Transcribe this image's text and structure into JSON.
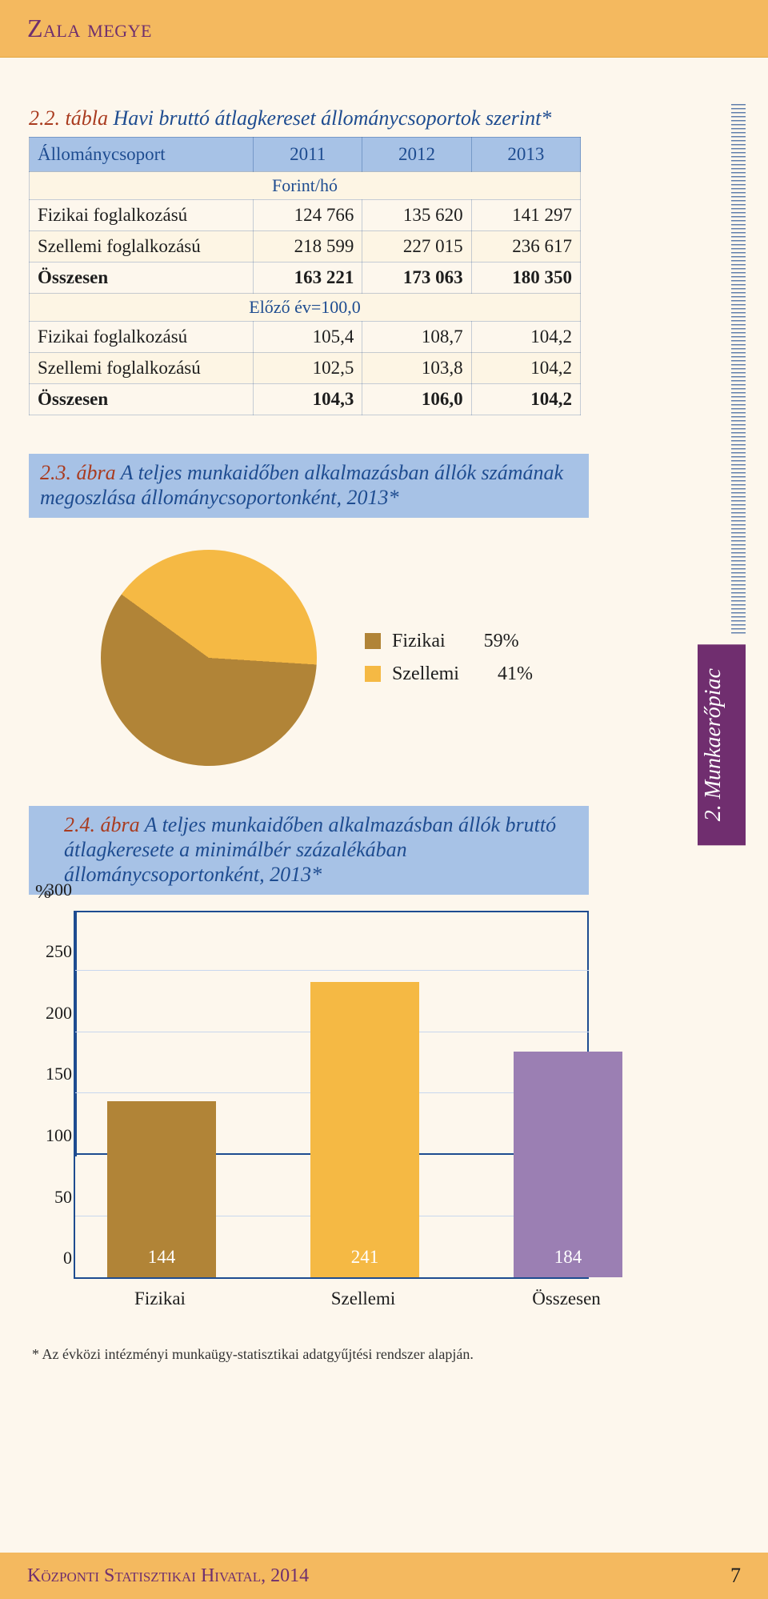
{
  "header": {
    "title": "Zala megye"
  },
  "sidebar": {
    "tab_label": "2. Munkaerőpiac"
  },
  "table": {
    "caption_num": "2.2. tábla",
    "caption_text": "Havi bruttó átlagkereset állománycsoportok szerint*",
    "columns": [
      "Állománycsoport",
      "2011",
      "2012",
      "2013"
    ],
    "section1_label": "Forint/hó",
    "rows1": [
      {
        "label": "Fizikai foglalkozású",
        "c": [
          "124 766",
          "135 620",
          "141 297"
        ],
        "bold": false
      },
      {
        "label": "Szellemi foglalkozású",
        "c": [
          "218 599",
          "227 015",
          "236 617"
        ],
        "bold": false
      },
      {
        "label": "Összesen",
        "c": [
          "163 221",
          "173 063",
          "180 350"
        ],
        "bold": true
      }
    ],
    "section2_label": "Előző év=100,0",
    "rows2": [
      {
        "label": "Fizikai foglalkozású",
        "c": [
          "105,4",
          "108,7",
          "104,2"
        ],
        "bold": false
      },
      {
        "label": "Szellemi foglalkozású",
        "c": [
          "102,5",
          "103,8",
          "104,2"
        ],
        "bold": false
      },
      {
        "label": "Összesen",
        "c": [
          "104,3",
          "106,0",
          "104,2"
        ],
        "bold": true
      }
    ]
  },
  "pie": {
    "caption_num": "2.3. ábra",
    "caption_text": "A teljes munkaidőben alkalmazásban állók számának megoszlása állománycsoportonként, 2013*",
    "slices": [
      {
        "label": "Fizikai",
        "pct": "59%",
        "value": 59,
        "color": "#b18437"
      },
      {
        "label": "Szellemi",
        "pct": "41%",
        "value": 41,
        "color": "#f5b944"
      }
    ],
    "background_color": "#fdf7ed"
  },
  "bar": {
    "caption_num": "2.4. ábra",
    "caption_text": "A teljes munkaidőben alkalmazásban állók bruttó átlagkeresete a minimálbér százalékában állománycsoportonként, 2013*",
    "y_unit": "%",
    "ymax": 300,
    "yticks": [
      0,
      50,
      100,
      150,
      200,
      250,
      300
    ],
    "grid_color": "#c8d7ee",
    "axis_color": "#1e4c90",
    "bars": [
      {
        "label": "Fizikai",
        "value": 144,
        "color": "#b18437"
      },
      {
        "label": "Szellemi",
        "value": 241,
        "color": "#f5b944"
      },
      {
        "label": "Összesen",
        "value": 184,
        "color": "#9b7fb3"
      }
    ],
    "baseline_value": 100,
    "baseline_color": "#1e4c90"
  },
  "footnote": "* Az évközi intézményi munkaügy-statisztikai adatgyűjtési rendszer alapján.",
  "footer": {
    "publisher": "Központi Statisztikai Hivatal, 2014",
    "page_num": "7"
  },
  "palette": {
    "page_bg": "#fdf7ed",
    "accent_bg": "#a7c2e6",
    "orange_bar": "#f4b95f",
    "text_blue": "#1e4c90",
    "text_red": "#a93b1f",
    "text_purple": "#6f2f6e"
  }
}
